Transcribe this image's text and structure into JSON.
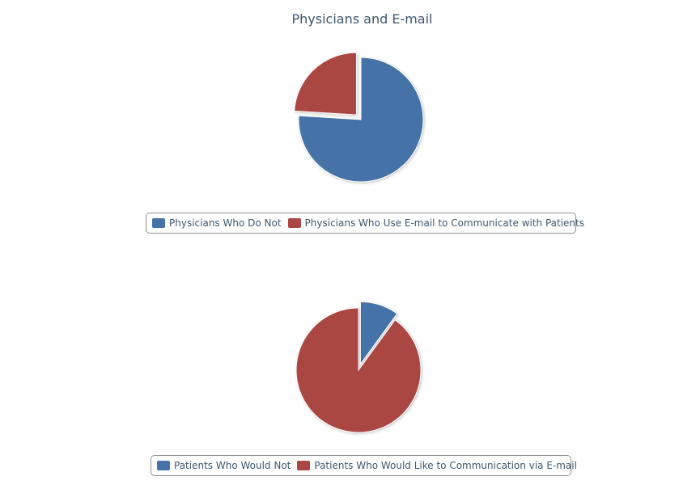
{
  "chart_data": [
    {
      "type": "pie",
      "title": "Physicians and E-mail",
      "slices": [
        {
          "label": "Physicians Who Do Not",
          "value": 76,
          "color": "#4572a7"
        },
        {
          "label": "Physicians Who Use E-mail to Communicate with Patients",
          "value": 24,
          "color": "#aa4643"
        }
      ],
      "exploded": "Physicians Who Use E-mail to Communicate with Patients",
      "legend": "bottom"
    },
    {
      "type": "pie",
      "title": "",
      "slices": [
        {
          "label": "Patients Who Would Not",
          "value": 10,
          "color": "#4572a7"
        },
        {
          "label": "Patients Who Would Like to Communication via E-mail",
          "value": 90,
          "color": "#aa4643"
        }
      ],
      "exploded": "Patients Who Would Not",
      "legend": "bottom"
    }
  ]
}
